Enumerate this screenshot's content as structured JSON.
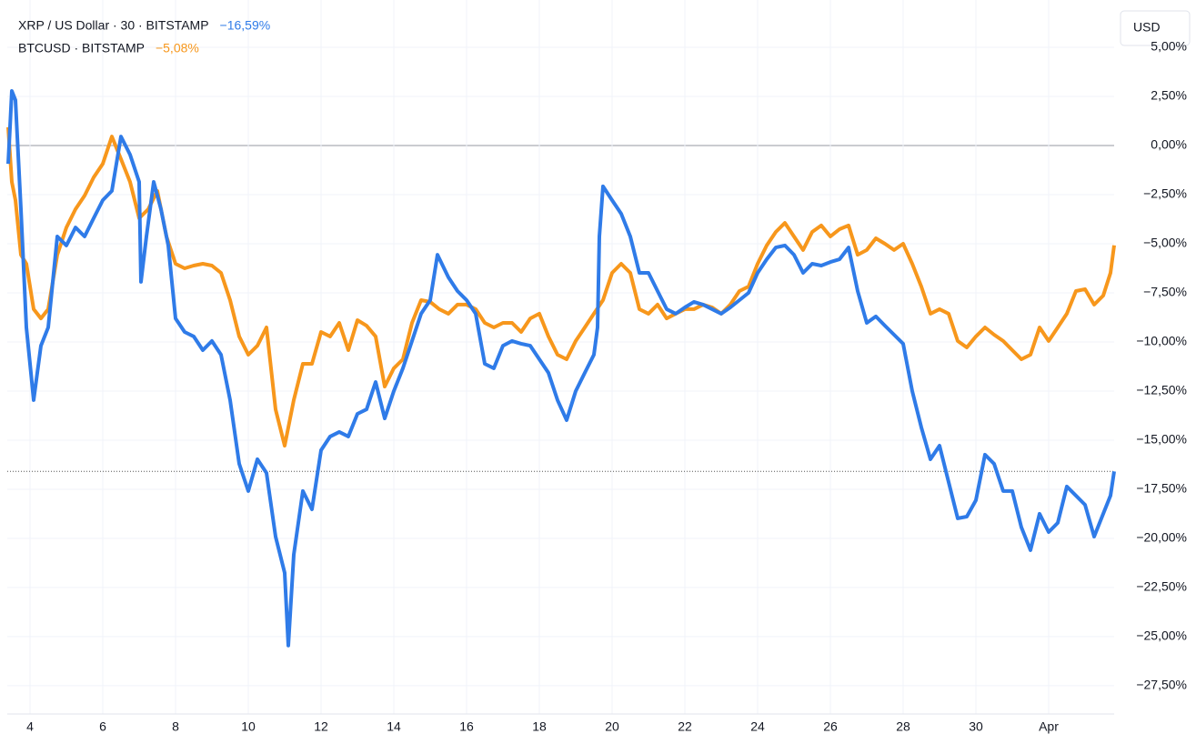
{
  "currency": "USD",
  "chart_data": {
    "type": "line",
    "xlim": [
      3.375,
      33.8
    ],
    "ylim": [
      -28.94,
      7.41
    ],
    "grid": true,
    "xticks": [
      {
        "value": 4,
        "label": "4"
      },
      {
        "value": 6,
        "label": "6"
      },
      {
        "value": 8,
        "label": "8"
      },
      {
        "value": 10,
        "label": "10"
      },
      {
        "value": 12,
        "label": "12"
      },
      {
        "value": 14,
        "label": "14"
      },
      {
        "value": 16,
        "label": "16"
      },
      {
        "value": 18,
        "label": "18"
      },
      {
        "value": 20,
        "label": "20"
      },
      {
        "value": 22,
        "label": "22"
      },
      {
        "value": 24,
        "label": "24"
      },
      {
        "value": 26,
        "label": "26"
      },
      {
        "value": 28,
        "label": "28"
      },
      {
        "value": 30,
        "label": "30"
      },
      {
        "value": 32,
        "label": "Apr"
      }
    ],
    "yticks": [
      {
        "value": 5,
        "label": "5,00%"
      },
      {
        "value": 2.5,
        "label": "2,50%"
      },
      {
        "value": 0,
        "label": "0,00%"
      },
      {
        "value": -2.5,
        "label": "−2,50%"
      },
      {
        "value": -5,
        "label": "−5,00%"
      },
      {
        "value": -7.5,
        "label": "−7,50%"
      },
      {
        "value": -10,
        "label": "−10,00%"
      },
      {
        "value": -12.5,
        "label": "−12,50%"
      },
      {
        "value": -15,
        "label": "−15,00%"
      },
      {
        "value": -17.5,
        "label": "−17,50%"
      },
      {
        "value": -20,
        "label": "−20,00%"
      },
      {
        "value": -22.5,
        "label": "−22,50%"
      },
      {
        "value": -25,
        "label": "−25,00%"
      },
      {
        "value": -27.5,
        "label": "−27,50%"
      }
    ],
    "series": [
      {
        "name": "XRP / US Dollar · 30 · BITSTAMP",
        "color": "#2f7be8",
        "change": -16.59,
        "change_label": "−16,59%",
        "x": [
          3.4,
          3.5,
          3.6,
          3.75,
          3.9,
          4.1,
          4.3,
          4.5,
          4.75,
          5,
          5.25,
          5.5,
          5.75,
          6,
          6.25,
          6.5,
          6.75,
          7,
          7.05,
          7.2,
          7.4,
          7.6,
          7.8,
          8,
          8.25,
          8.5,
          8.75,
          9,
          9.25,
          9.5,
          9.75,
          10,
          10.25,
          10.5,
          10.75,
          11,
          11.1,
          11.25,
          11.5,
          11.75,
          12,
          12.25,
          12.5,
          12.75,
          13,
          13.25,
          13.5,
          13.75,
          14,
          14.25,
          14.5,
          14.75,
          15,
          15.2,
          15.5,
          15.75,
          16,
          16.25,
          16.5,
          16.75,
          17,
          17.25,
          17.5,
          17.75,
          18,
          18.25,
          18.5,
          18.75,
          19,
          19.25,
          19.5,
          19.6,
          19.65,
          19.75,
          20,
          20.25,
          20.5,
          20.75,
          21,
          21.25,
          21.5,
          21.75,
          22,
          22.25,
          22.5,
          22.75,
          23,
          23.25,
          23.5,
          23.75,
          24,
          24.25,
          24.5,
          24.75,
          25,
          25.25,
          25.5,
          25.75,
          26,
          26.25,
          26.5,
          26.75,
          27,
          27.25,
          27.5,
          27.75,
          28,
          28.25,
          28.5,
          28.75,
          29,
          29.25,
          29.5,
          29.75,
          30,
          30.25,
          30.5,
          30.75,
          31,
          31.25,
          31.5,
          31.75,
          32,
          32.25,
          32.5,
          32.75,
          33,
          33.25,
          33.5,
          33.7,
          33.8
        ],
        "values": [
          -0.93,
          2.78,
          2.31,
          -3.24,
          -9.26,
          -12.96,
          -10.19,
          -9.26,
          -4.63,
          -5.09,
          -4.17,
          -4.63,
          -3.7,
          -2.78,
          -2.31,
          0.46,
          -0.46,
          -1.85,
          -6.94,
          -4.63,
          -1.85,
          -3.24,
          -5.09,
          -8.8,
          -9.49,
          -9.72,
          -10.42,
          -9.95,
          -10.65,
          -12.96,
          -16.2,
          -17.59,
          -15.97,
          -16.67,
          -19.91,
          -21.76,
          -25.46,
          -20.83,
          -17.59,
          -18.52,
          -15.51,
          -14.81,
          -14.58,
          -14.81,
          -13.66,
          -13.43,
          -12.04,
          -13.89,
          -12.5,
          -11.34,
          -9.95,
          -8.56,
          -7.87,
          -5.56,
          -6.71,
          -7.41,
          -7.87,
          -8.56,
          -11.11,
          -11.34,
          -10.19,
          -9.95,
          -10.09,
          -10.19,
          -10.88,
          -11.57,
          -12.96,
          -13.98,
          -12.5,
          -11.57,
          -10.65,
          -9.26,
          -4.63,
          -2.08,
          -2.78,
          -3.47,
          -4.63,
          -6.48,
          -6.48,
          -7.41,
          -8.33,
          -8.56,
          -8.24,
          -7.96,
          -8.1,
          -8.33,
          -8.56,
          -8.24,
          -7.87,
          -7.5,
          -6.48,
          -5.79,
          -5.19,
          -5.09,
          -5.56,
          -6.48,
          -6.02,
          -6.11,
          -5.93,
          -5.79,
          -5.19,
          -7.41,
          -9.03,
          -8.7,
          -9.17,
          -9.63,
          -10.09,
          -12.5,
          -14.35,
          -15.97,
          -15.28,
          -17.13,
          -18.98,
          -18.89,
          -18.06,
          -15.74,
          -16.2,
          -17.59,
          -17.59,
          -19.44,
          -20.6,
          -18.75,
          -19.68,
          -19.21,
          -17.36,
          -17.82,
          -18.29,
          -19.91,
          -18.75,
          -17.82,
          -16.59
        ]
      },
      {
        "name": "BTCUSD · BITSTAMP",
        "color": "#f7971c",
        "change": -5.08,
        "change_label": "−5,08%",
        "x": [
          3.4,
          3.5,
          3.6,
          3.75,
          3.9,
          4.1,
          4.3,
          4.5,
          4.75,
          5,
          5.25,
          5.5,
          5.75,
          6,
          6.25,
          6.5,
          6.75,
          7,
          7.25,
          7.5,
          7.75,
          8,
          8.25,
          8.5,
          8.75,
          9,
          9.25,
          9.5,
          9.75,
          10,
          10.25,
          10.5,
          10.75,
          11,
          11.25,
          11.5,
          11.75,
          12,
          12.25,
          12.5,
          12.75,
          13,
          13.25,
          13.5,
          13.75,
          14,
          14.25,
          14.5,
          14.75,
          15,
          15.25,
          15.5,
          15.75,
          16,
          16.25,
          16.5,
          16.75,
          17,
          17.25,
          17.5,
          17.75,
          18,
          18.25,
          18.5,
          18.75,
          19,
          19.25,
          19.5,
          19.75,
          20,
          20.25,
          20.5,
          20.75,
          21,
          21.25,
          21.5,
          21.75,
          22,
          22.25,
          22.5,
          22.75,
          23,
          23.25,
          23.5,
          23.75,
          24,
          24.25,
          24.5,
          24.75,
          25,
          25.25,
          25.5,
          25.75,
          26,
          26.25,
          26.5,
          26.75,
          27,
          27.25,
          27.5,
          27.75,
          28,
          28.25,
          28.5,
          28.75,
          29,
          29.25,
          29.5,
          29.75,
          30,
          30.25,
          30.5,
          30.75,
          31,
          31.25,
          31.5,
          31.75,
          32,
          32.25,
          32.5,
          32.75,
          33,
          33.25,
          33.5,
          33.7,
          33.8
        ],
        "values": [
          0.93,
          -1.85,
          -2.78,
          -5.56,
          -6.02,
          -8.33,
          -8.8,
          -8.33,
          -5.56,
          -4.17,
          -3.24,
          -2.55,
          -1.62,
          -0.93,
          0.46,
          -0.69,
          -1.85,
          -3.7,
          -3.24,
          -2.31,
          -4.63,
          -6.02,
          -6.25,
          -6.11,
          -6.02,
          -6.11,
          -6.48,
          -7.87,
          -9.72,
          -10.65,
          -10.19,
          -9.26,
          -13.43,
          -15.28,
          -12.96,
          -11.11,
          -11.11,
          -9.49,
          -9.72,
          -9.03,
          -10.42,
          -8.89,
          -9.17,
          -9.72,
          -12.27,
          -11.34,
          -10.88,
          -9.03,
          -7.87,
          -7.96,
          -8.33,
          -8.56,
          -8.1,
          -8.1,
          -8.33,
          -9.03,
          -9.26,
          -9.03,
          -9.03,
          -9.49,
          -8.8,
          -8.56,
          -9.72,
          -10.65,
          -10.88,
          -9.95,
          -9.26,
          -8.56,
          -7.87,
          -6.48,
          -6.02,
          -6.48,
          -8.33,
          -8.56,
          -8.1,
          -8.8,
          -8.56,
          -8.33,
          -8.33,
          -8.1,
          -8.24,
          -8.56,
          -8.1,
          -7.41,
          -7.18,
          -6.02,
          -5.09,
          -4.4,
          -3.94,
          -4.63,
          -5.32,
          -4.4,
          -4.07,
          -4.63,
          -4.26,
          -4.07,
          -5.56,
          -5.32,
          -4.72,
          -5,
          -5.32,
          -5,
          -6.02,
          -7.18,
          -8.56,
          -8.33,
          -8.56,
          -9.95,
          -10.28,
          -9.72,
          -9.26,
          -9.63,
          -9.95,
          -10.42,
          -10.88,
          -10.65,
          -9.26,
          -9.95,
          -9.26,
          -8.56,
          -7.41,
          -7.31,
          -8.1,
          -7.64,
          -6.48,
          -5.08
        ]
      }
    ]
  }
}
